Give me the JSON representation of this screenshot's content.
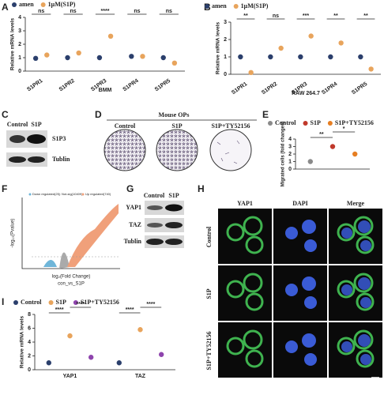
{
  "panels": {
    "letters": [
      "A",
      "B",
      "C",
      "D",
      "E",
      "F",
      "G",
      "H",
      "I"
    ]
  },
  "chart_data": [
    {
      "type": "dot",
      "y_label": "Relative mRNA levels",
      "x_label": "BMM",
      "categories": [
        "S1PR1",
        "S1PR2",
        "S1PR3",
        "S1PR4",
        "S1PR5"
      ],
      "series": [
        {
          "name": "amen",
          "color": "#2b3f6c",
          "values": [
            0.95,
            1.0,
            1.0,
            1.1,
            1.0
          ]
        },
        {
          "name": "1μM(S1P)",
          "color": "#e8a45c",
          "values": [
            1.2,
            1.35,
            2.6,
            1.1,
            0.6
          ]
        }
      ],
      "ylim": [
        0,
        4
      ],
      "yticks": [
        0,
        1,
        2,
        3,
        4
      ],
      "annotations": [
        "ns",
        "ns",
        "****",
        "ns",
        "ns"
      ]
    },
    {
      "type": "dot",
      "y_label": "Relative mRNA levels",
      "x_label": "RAW 264.7",
      "categories": [
        "S1PR1",
        "S1PR2",
        "S1PR3",
        "S1PR4",
        "S1PR5"
      ],
      "series": [
        {
          "name": "amen",
          "color": "#2b3f6c",
          "values": [
            1.0,
            1.0,
            1.0,
            1.0,
            1.0
          ]
        },
        {
          "name": "1μM(S1P)",
          "color": "#e8a45c",
          "values": [
            0.1,
            1.5,
            2.2,
            1.8,
            0.3
          ]
        }
      ],
      "ylim": [
        0,
        3
      ],
      "yticks": [
        0,
        1,
        2,
        3
      ],
      "annotations": [
        "**",
        "ns",
        "***",
        "**",
        "**"
      ]
    },
    {
      "type": "dot",
      "y_label": "Migrated cells (fold changes)",
      "categories": [
        null
      ],
      "series": [
        {
          "name": "Control",
          "color": "#8a8a8a",
          "values": [
            1.0
          ]
        },
        {
          "name": "S1P",
          "color": "#c0392b",
          "values": [
            3.0
          ]
        },
        {
          "name": "S1P+TY52156",
          "color": "#e67e22",
          "values": [
            2.0
          ]
        }
      ],
      "ylim": [
        0,
        4
      ],
      "yticks": [
        0,
        1,
        2,
        3,
        4
      ],
      "annotations": [
        "**",
        "*"
      ]
    },
    {
      "type": "dot",
      "y_label": "Relative mRNA levels",
      "categories": [
        "YAP1",
        "TAZ"
      ],
      "series": [
        {
          "name": "Control",
          "color": "#2b3f6c",
          "values": [
            1.0,
            1.0
          ]
        },
        {
          "name": "S1P",
          "color": "#e8a45c",
          "values": [
            4.9,
            5.8
          ]
        },
        {
          "name": "S1P+TY52156",
          "color": "#8e44ad",
          "values": [
            1.8,
            2.2
          ]
        }
      ],
      "ylim": [
        0,
        8
      ],
      "yticks": [
        0,
        2,
        4,
        6,
        8
      ],
      "annotations": [
        "****",
        "****",
        "****",
        "****"
      ]
    }
  ],
  "blot_c": {
    "lanes": [
      "Control",
      "S1P"
    ],
    "bands": [
      "S1P3",
      "Tublin"
    ]
  },
  "panel_d": {
    "title": "Mouse OPs",
    "columns": [
      "Control",
      "S1P",
      "S1P+TY52156"
    ]
  },
  "volcano": {
    "legend": [
      "Down regulated(25)",
      "Not-sig(10409)",
      "Up regulated(740)"
    ],
    "y_label": "-log₁₀(Pvalue)",
    "x_label": "log₂(Fold Change)",
    "subtitle": "con_vs_S1P"
  },
  "blot_g": {
    "lanes": [
      "Control",
      "S1P"
    ],
    "bands": [
      "YAP1",
      "TAZ",
      "Tublin"
    ]
  },
  "panel_h": {
    "columns": [
      "YAP1",
      "DAPI",
      "Merge"
    ],
    "rows": [
      "Control",
      "S1P",
      "S1P+TY52156"
    ]
  }
}
